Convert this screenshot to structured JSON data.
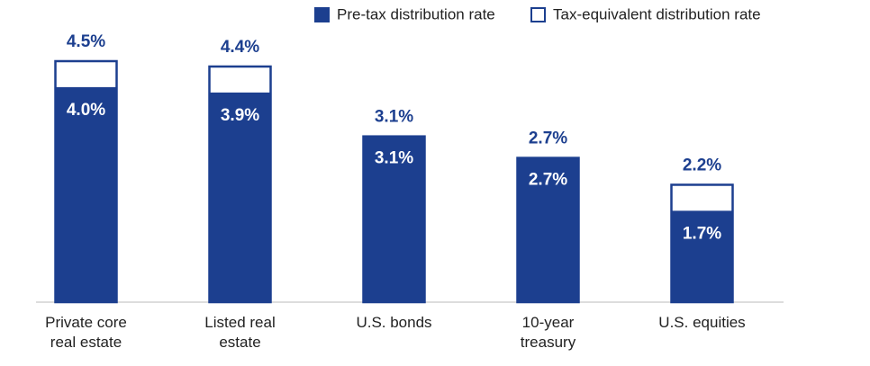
{
  "chart_data": {
    "type": "overlapped-bar",
    "categories": [
      "Private core real estate",
      "Listed real estate",
      "U.S. bonds",
      "10-year treasury",
      "U.S. equities"
    ],
    "series": [
      {
        "name": "Tax-equivalent distribution rate",
        "color": "#ffffff",
        "border": "#1c3f8f",
        "values": [
          4.5,
          4.4,
          3.1,
          2.7,
          2.2
        ],
        "value_labels": [
          "4.5%",
          "4.4%",
          "3.1%",
          "2.7%",
          "2.2%"
        ]
      },
      {
        "name": "Pre-tax distribution rate",
        "color": "#1c3f8f",
        "values": [
          4.0,
          3.9,
          3.1,
          2.7,
          1.7
        ],
        "value_labels": [
          "4.0%",
          "3.9%",
          "3.1%",
          "2.7%",
          "1.7%"
        ]
      }
    ],
    "ylim": [
      0,
      4.5
    ]
  }
}
